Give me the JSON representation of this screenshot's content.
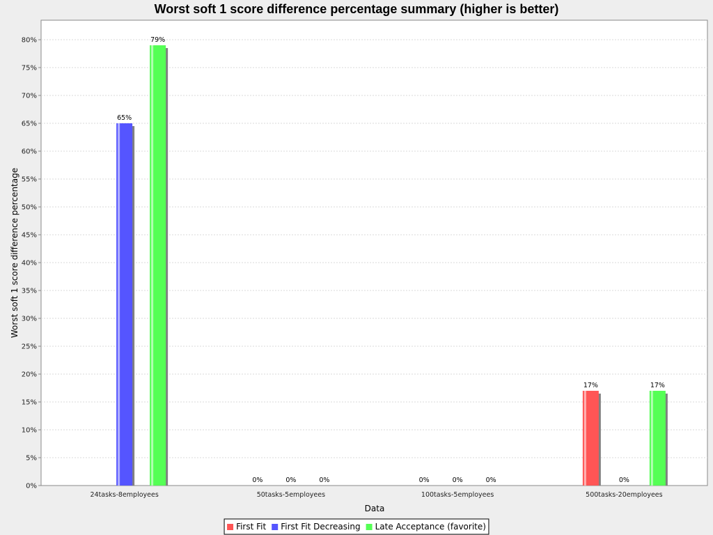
{
  "chart_data": {
    "type": "bar",
    "title": "Worst soft 1 score difference percentage summary (higher is better)",
    "xlabel": "Data",
    "ylabel": "Worst soft 1 score difference percentage",
    "categories": [
      "24tasks-8employees",
      "50tasks-5employees",
      "100tasks-5employees",
      "500tasks-20employees"
    ],
    "series": [
      {
        "name": "First Fit",
        "color": "#ff5555",
        "values": [
          null,
          0,
          0,
          17
        ]
      },
      {
        "name": "First Fit Decreasing",
        "color": "#5555ff",
        "values": [
          65,
          0,
          0,
          0
        ]
      },
      {
        "name": "Late Acceptance (favorite)",
        "color": "#55ff55",
        "values": [
          79,
          0,
          0,
          17
        ]
      }
    ],
    "data_labels": [
      [
        null,
        "0%",
        "0%",
        "17%"
      ],
      [
        "65%",
        "0%",
        "0%",
        "0%"
      ],
      [
        "79%",
        "0%",
        "0%",
        "17%"
      ]
    ],
    "ylim": [
      0,
      83.5
    ],
    "y_ticks": [
      0,
      5,
      10,
      15,
      20,
      25,
      30,
      35,
      40,
      45,
      50,
      55,
      60,
      65,
      70,
      75,
      80
    ],
    "y_tick_labels": [
      "0%",
      "5%",
      "10%",
      "15%",
      "20%",
      "25%",
      "30%",
      "35%",
      "40%",
      "45%",
      "50%",
      "55%",
      "60%",
      "65%",
      "70%",
      "75%",
      "80%"
    ],
    "grid": true,
    "legend_position": "bottom"
  }
}
